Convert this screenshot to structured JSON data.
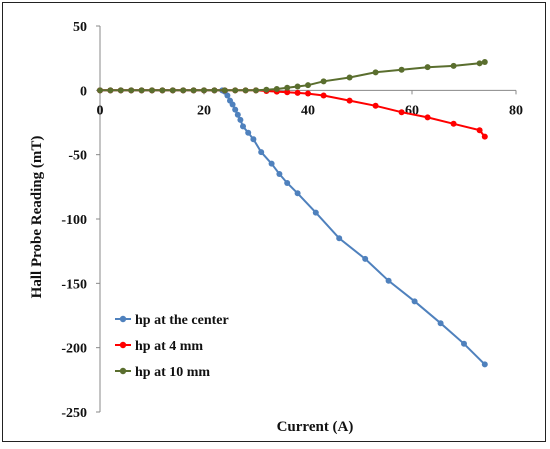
{
  "chart_data": {
    "type": "line",
    "title": "",
    "xlabel": "Current (A)",
    "ylabel": "Hall Probe Reading (mT)",
    "xlim": [
      0,
      80
    ],
    "ylim": [
      -250,
      50
    ],
    "xticks": [
      0,
      20,
      40,
      60,
      80
    ],
    "yticks": [
      50,
      0,
      -50,
      -100,
      -150,
      -200,
      -250
    ],
    "grid": false,
    "legend_position": "bottom-left",
    "series": [
      {
        "name": "hp at the center",
        "color": "#4f81bd",
        "points": [
          [
            0,
            0
          ],
          [
            2,
            0
          ],
          [
            4,
            0
          ],
          [
            6,
            0
          ],
          [
            8,
            0
          ],
          [
            10,
            0
          ],
          [
            12,
            0
          ],
          [
            14,
            0
          ],
          [
            16,
            0
          ],
          [
            18,
            0
          ],
          [
            20,
            0
          ],
          [
            22,
            0
          ],
          [
            23.5,
            0
          ],
          [
            24,
            -1
          ],
          [
            24.5,
            -4
          ],
          [
            25,
            -8
          ],
          [
            25.5,
            -11
          ],
          [
            26,
            -15
          ],
          [
            26.5,
            -19
          ],
          [
            27,
            -23
          ],
          [
            27.5,
            -28
          ],
          [
            28.5,
            -33
          ],
          [
            29.5,
            -38
          ],
          [
            31,
            -48
          ],
          [
            33,
            -57
          ],
          [
            34.5,
            -65
          ],
          [
            36,
            -72
          ],
          [
            38,
            -80
          ],
          [
            41.5,
            -95
          ],
          [
            46,
            -115
          ],
          [
            51,
            -131
          ],
          [
            55.5,
            -148
          ],
          [
            60.5,
            -164
          ],
          [
            65.5,
            -181
          ],
          [
            70,
            -197
          ],
          [
            74,
            -213
          ]
        ]
      },
      {
        "name": "hp at 4 mm",
        "color": "#ff0000",
        "points": [
          [
            0,
            0
          ],
          [
            2,
            0
          ],
          [
            4,
            0
          ],
          [
            6,
            0
          ],
          [
            8,
            0
          ],
          [
            10,
            0
          ],
          [
            12,
            0
          ],
          [
            14,
            0
          ],
          [
            16,
            0
          ],
          [
            18,
            0
          ],
          [
            20,
            0
          ],
          [
            22,
            0
          ],
          [
            24,
            0
          ],
          [
            26,
            0
          ],
          [
            28,
            0
          ],
          [
            30,
            0
          ],
          [
            32,
            -0.5
          ],
          [
            34,
            -1
          ],
          [
            36,
            -1.5
          ],
          [
            38,
            -2
          ],
          [
            40,
            -2.5
          ],
          [
            43,
            -4
          ],
          [
            48,
            -8
          ],
          [
            53,
            -12
          ],
          [
            58,
            -17
          ],
          [
            63,
            -21
          ],
          [
            68,
            -26
          ],
          [
            73,
            -31
          ],
          [
            74,
            -36
          ]
        ]
      },
      {
        "name": "hp at 10 mm",
        "color": "#5a6e2e",
        "points": [
          [
            0,
            0
          ],
          [
            2,
            0
          ],
          [
            4,
            0
          ],
          [
            6,
            0
          ],
          [
            8,
            0
          ],
          [
            10,
            0
          ],
          [
            12,
            0
          ],
          [
            14,
            0
          ],
          [
            16,
            0
          ],
          [
            18,
            0
          ],
          [
            20,
            0
          ],
          [
            22,
            0
          ],
          [
            24,
            0
          ],
          [
            26,
            0
          ],
          [
            28,
            0
          ],
          [
            30,
            0
          ],
          [
            32,
            0.5
          ],
          [
            34,
            1
          ],
          [
            36,
            2
          ],
          [
            38,
            3
          ],
          [
            40,
            4
          ],
          [
            43,
            7
          ],
          [
            48,
            10
          ],
          [
            53,
            14
          ],
          [
            58,
            16
          ],
          [
            63,
            18
          ],
          [
            68,
            19
          ],
          [
            73,
            21
          ],
          [
            74,
            22
          ]
        ]
      }
    ]
  }
}
